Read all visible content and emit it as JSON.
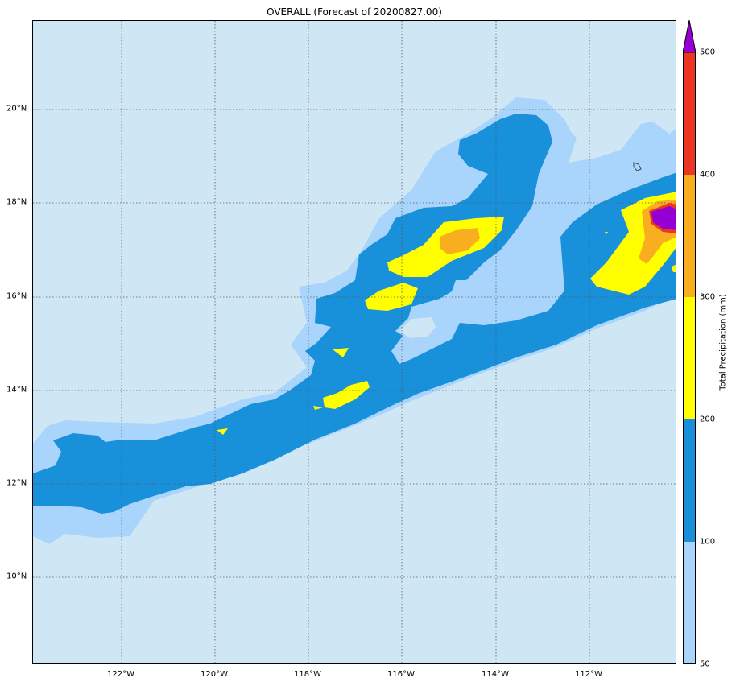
{
  "title": "OVERALL (Forecast of 20200827.00)",
  "x_ticks": [
    "122°W",
    "120°W",
    "118°W",
    "116°W",
    "114°W",
    "112°W"
  ],
  "y_ticks": [
    "20°N",
    "18°N",
    "16°N",
    "14°N",
    "12°N",
    "10°N"
  ],
  "colorbar": {
    "label": "Total Precipitation (mm)",
    "ticks": [
      "500",
      "400",
      "300",
      "200",
      "100",
      "50"
    ],
    "levels": [
      {
        "min": 50,
        "max": 100,
        "color": "#a9d4fb"
      },
      {
        "min": 100,
        "max": 200,
        "color": "#1890da"
      },
      {
        "min": 200,
        "max": 300,
        "color": "#ffff00"
      },
      {
        "min": 300,
        "max": 400,
        "color": "#f8ae1e"
      },
      {
        "min": 400,
        "max": 500,
        "color": "#ec3623"
      },
      {
        "min": 500,
        "max": null,
        "color": "#9400d3"
      }
    ]
  },
  "map_colors": {
    "background": "#cfe6f5",
    "grid": "#555555"
  }
}
